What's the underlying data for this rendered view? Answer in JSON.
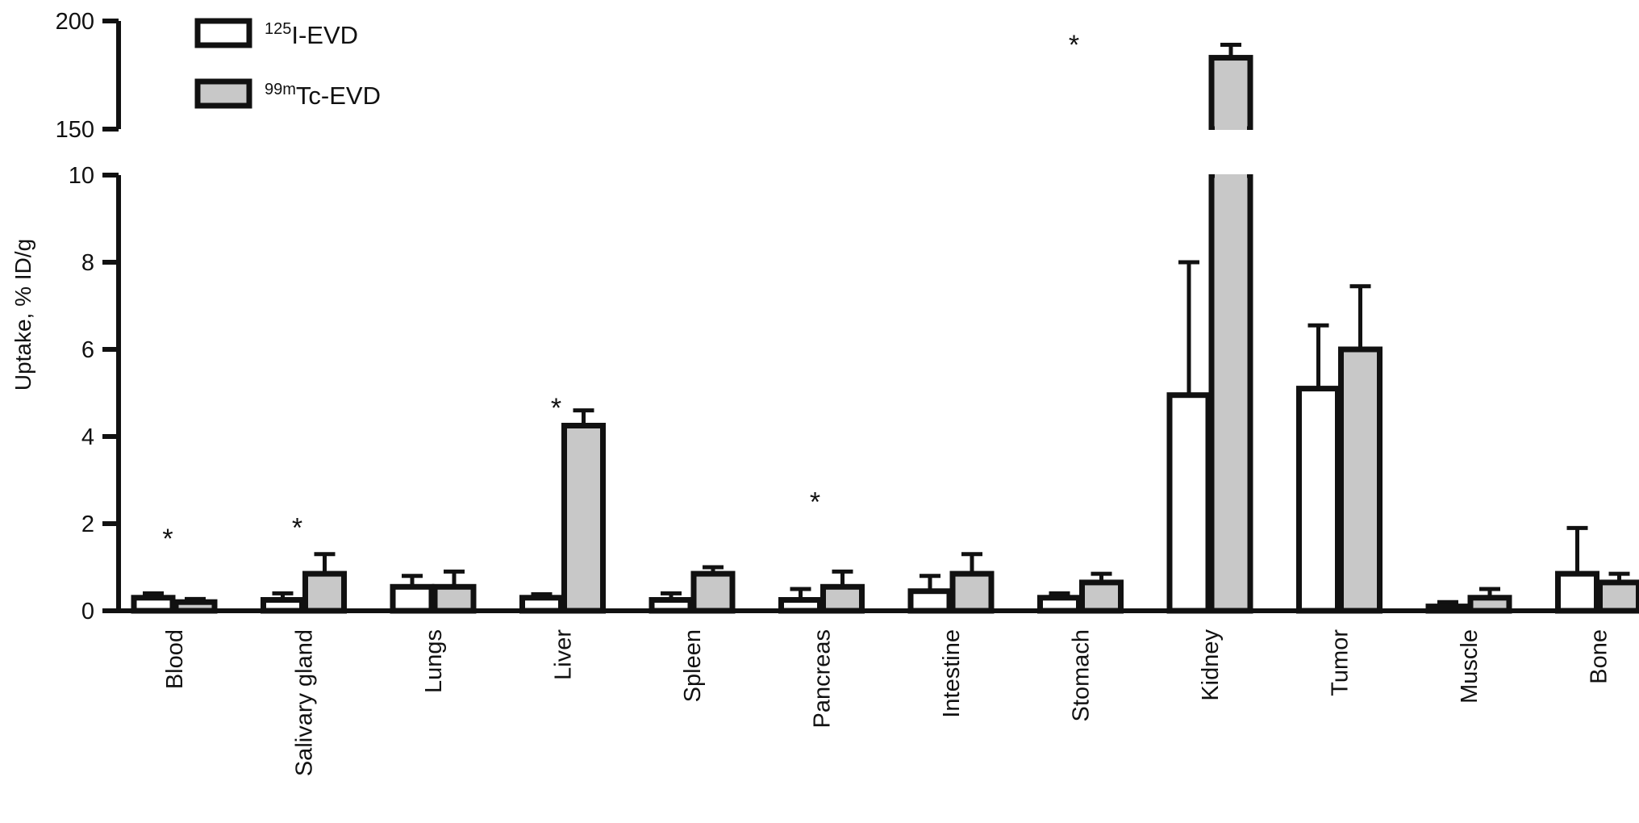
{
  "chart_data": {
    "type": "bar",
    "ylabel": "Uptake, % ID/g",
    "y_axis": {
      "broken": true,
      "lower_range": [
        0,
        10
      ],
      "lower_ticks": [
        "0",
        "2",
        "4",
        "6",
        "8",
        "10"
      ],
      "upper_range": [
        150,
        200
      ],
      "upper_ticks": [
        "150",
        "200"
      ]
    },
    "legend": {
      "position": "top-left",
      "entries": [
        {
          "sup": "125",
          "text": "I-EVD",
          "fill": "#ffffff"
        },
        {
          "sup": "99m",
          "text": "Tc-EVD",
          "fill": "#c8c8c8"
        }
      ]
    },
    "categories": [
      "Blood",
      "Salivary gland",
      "Lungs",
      "Liver",
      "Spleen",
      "Pancreas",
      "Intestine",
      "Stomach",
      "Kidney",
      "Tumor",
      "Muscle",
      "Bone"
    ],
    "series": [
      {
        "name": "125I-EVD",
        "fill": "#ffffff",
        "values": [
          0.3,
          0.25,
          0.55,
          0.3,
          0.25,
          0.25,
          0.45,
          0.3,
          4.95,
          5.1,
          0.1,
          0.85
        ],
        "errors": [
          0.1,
          0.15,
          0.25,
          0.08,
          0.15,
          0.25,
          0.35,
          0.1,
          3.05,
          1.45,
          0.1,
          1.05
        ]
      },
      {
        "name": "99mTc-EVD",
        "fill": "#c8c8c8",
        "values": [
          0.2,
          0.85,
          0.55,
          4.25,
          0.85,
          0.55,
          0.85,
          0.65,
          183,
          6.0,
          0.3,
          0.65
        ],
        "errors": [
          0.07,
          0.45,
          0.35,
          0.35,
          0.15,
          0.35,
          0.45,
          0.2,
          6,
          1.45,
          0.2,
          0.2
        ]
      }
    ],
    "annotations": [
      {
        "text": "*",
        "category": "Blood",
        "y": 1.7
      },
      {
        "text": "*",
        "category": "Salivary gland",
        "y": 1.95
      },
      {
        "text": "*",
        "category": "Liver",
        "y": 4.7
      },
      {
        "text": "*",
        "category": "Pancreas",
        "y": 2.55
      },
      {
        "text": "*",
        "category": "Stomach",
        "y": 190
      }
    ]
  }
}
